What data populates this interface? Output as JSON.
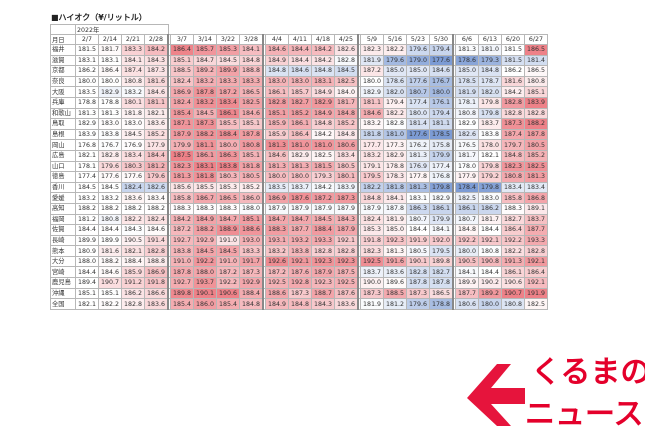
{
  "title": "■ハイオク（¥/リットル）",
  "header": {
    "year_label": "2022年",
    "corner_label": "月日",
    "dates": [
      "2/7",
      "2/14",
      "2/21",
      "2/28",
      "3/7",
      "3/14",
      "3/22",
      "3/28",
      "4/4",
      "4/11",
      "4/18",
      "4/25",
      "5/9",
      "5/16",
      "5/23",
      "5/30",
      "6/6",
      "6/13",
      "6/20",
      "6/27"
    ]
  },
  "rows": [
    {
      "pref": "福井",
      "values": [
        "181.5",
        "181.7",
        "183.3",
        "184.2",
        "186.4",
        "185.7",
        "185.3",
        "184.1",
        "184.6",
        "184.4",
        "184.2",
        "182.6",
        "182.3",
        "182.2",
        "179.6",
        "179.4",
        "181.3",
        "181.0",
        "181.5",
        "186.5"
      ]
    },
    {
      "pref": "滋賀",
      "values": [
        "183.1",
        "183.1",
        "184.1",
        "184.3",
        "185.1",
        "184.7",
        "184.5",
        "184.8",
        "184.9",
        "184.4",
        "184.2",
        "182.8",
        "181.9",
        "179.6",
        "179.0",
        "177.6",
        "178.6",
        "179.3",
        "181.5",
        "181.4"
      ]
    },
    {
      "pref": "京都",
      "values": [
        "186.2",
        "186.4",
        "187.4",
        "187.3",
        "188.5",
        "189.2",
        "189.9",
        "188.8",
        "184.8",
        "184.6",
        "184.8",
        "184.5",
        "187.2",
        "185.0",
        "185.0",
        "184.6",
        "185.0",
        "184.8",
        "186.2",
        "186.5"
      ]
    },
    {
      "pref": "奈良",
      "values": [
        "180.0",
        "180.0",
        "180.8",
        "181.6",
        "182.4",
        "183.2",
        "183.3",
        "183.3",
        "183.0",
        "183.0",
        "183.1",
        "182.5",
        "180.0",
        "178.6",
        "177.6",
        "176.7",
        "178.5",
        "178.7",
        "181.6",
        "180.8"
      ]
    },
    {
      "pref": "大阪",
      "values": [
        "183.5",
        "182.9",
        "183.2",
        "184.6",
        "186.9",
        "187.8",
        "187.2",
        "186.5",
        "186.1",
        "185.7",
        "184.9",
        "184.0",
        "182.9",
        "182.0",
        "180.7",
        "180.0",
        "181.9",
        "182.0",
        "184.2",
        "185.1"
      ]
    },
    {
      "pref": "兵庫",
      "values": [
        "178.8",
        "178.8",
        "180.1",
        "181.1",
        "182.4",
        "183.2",
        "183.4",
        "182.5",
        "182.8",
        "182.7",
        "182.9",
        "181.7",
        "181.1",
        "179.4",
        "177.4",
        "176.1",
        "178.1",
        "179.8",
        "182.8",
        "183.9"
      ]
    },
    {
      "pref": "和歌山",
      "values": [
        "181.3",
        "181.3",
        "181.8",
        "182.1",
        "185.4",
        "184.5",
        "186.1",
        "184.6",
        "185.1",
        "185.2",
        "184.9",
        "184.8",
        "184.6",
        "182.2",
        "180.0",
        "179.4",
        "180.8",
        "179.8",
        "182.8",
        "182.8"
      ]
    },
    {
      "pref": "鳥取",
      "values": [
        "182.9",
        "183.0",
        "183.0",
        "183.6",
        "187.1",
        "187.3",
        "185.5",
        "185.1",
        "185.9",
        "186.1",
        "184.8",
        "185.2",
        "183.2",
        "182.8",
        "181.4",
        "181.1",
        "182.9",
        "183.7",
        "187.3",
        "188.2"
      ]
    },
    {
      "pref": "島根",
      "values": [
        "183.9",
        "183.8",
        "184.5",
        "185.2",
        "187.9",
        "188.2",
        "188.4",
        "187.8",
        "185.9",
        "186.4",
        "184.2",
        "184.8",
        "181.8",
        "181.0",
        "177.6",
        "178.5",
        "182.6",
        "183.8",
        "187.4",
        "187.8"
      ]
    },
    {
      "pref": "岡山",
      "values": [
        "176.8",
        "176.7",
        "176.9",
        "177.9",
        "179.9",
        "181.1",
        "180.0",
        "180.8",
        "181.3",
        "181.0",
        "181.0",
        "180.6",
        "177.7",
        "177.3",
        "176.2",
        "175.8",
        "176.5",
        "178.0",
        "179.7",
        "180.5"
      ]
    },
    {
      "pref": "広島",
      "values": [
        "182.1",
        "182.8",
        "183.4",
        "184.4",
        "187.5",
        "186.1",
        "186.3",
        "185.1",
        "184.6",
        "182.9",
        "182.5",
        "183.4",
        "183.2",
        "182.9",
        "181.3",
        "179.9",
        "181.7",
        "182.1",
        "184.8",
        "185.2"
      ]
    },
    {
      "pref": "山口",
      "values": [
        "178.1",
        "179.6",
        "180.3",
        "181.2",
        "182.3",
        "183.1",
        "183.8",
        "181.8",
        "181.3",
        "181.3",
        "181.5",
        "180.5",
        "179.1",
        "178.8",
        "176.9",
        "177.4",
        "178.0",
        "179.8",
        "182.3",
        "182.5"
      ]
    },
    {
      "pref": "徳島",
      "values": [
        "177.4",
        "177.6",
        "177.6",
        "179.6",
        "181.3",
        "181.8",
        "180.3",
        "180.5",
        "180.0",
        "180.0",
        "179.3",
        "180.1",
        "179.5",
        "178.3",
        "177.8",
        "176.8",
        "177.9",
        "179.2",
        "180.8",
        "181.3"
      ]
    },
    {
      "pref": "香川",
      "values": [
        "184.5",
        "184.5",
        "182.4",
        "182.6",
        "185.6",
        "185.5",
        "185.3",
        "185.2",
        "183.5",
        "183.7",
        "184.2",
        "183.9",
        "182.2",
        "181.8",
        "181.3",
        "179.8",
        "178.4",
        "179.8",
        "183.4",
        "183.4"
      ]
    },
    {
      "pref": "愛媛",
      "values": [
        "183.2",
        "183.2",
        "183.6",
        "183.4",
        "185.8",
        "186.7",
        "186.5",
        "186.0",
        "186.9",
        "187.6",
        "187.2",
        "187.3",
        "184.8",
        "184.1",
        "183.1",
        "182.9",
        "182.5",
        "183.0",
        "185.8",
        "186.8"
      ]
    },
    {
      "pref": "高知",
      "values": [
        "188.2",
        "188.2",
        "188.2",
        "188.2",
        "188.3",
        "188.3",
        "188.3",
        "188.0",
        "187.9",
        "187.9",
        "187.9",
        "187.9",
        "187.9",
        "187.8",
        "186.3",
        "186.1",
        "186.1",
        "186.2",
        "188.3",
        "189.1"
      ]
    },
    {
      "pref": "福岡",
      "values": [
        "181.2",
        "180.8",
        "182.2",
        "182.4",
        "184.2",
        "184.9",
        "184.7",
        "185.1",
        "184.7",
        "184.7",
        "184.5",
        "184.3",
        "182.4",
        "181.9",
        "180.7",
        "179.9",
        "180.7",
        "181.7",
        "182.7",
        "183.7"
      ]
    },
    {
      "pref": "佐賀",
      "values": [
        "184.4",
        "184.4",
        "184.3",
        "184.6",
        "187.2",
        "188.2",
        "188.9",
        "188.6",
        "188.3",
        "187.7",
        "188.4",
        "187.9",
        "185.3",
        "185.0",
        "184.4",
        "184.1",
        "184.8",
        "184.4",
        "186.4",
        "187.7"
      ]
    },
    {
      "pref": "長崎",
      "values": [
        "189.9",
        "189.9",
        "190.5",
        "191.4",
        "192.7",
        "192.9",
        "191.0",
        "193.0",
        "193.1",
        "193.2",
        "193.3",
        "192.1",
        "191.8",
        "192.3",
        "191.9",
        "192.0",
        "192.2",
        "192.1",
        "192.2",
        "193.3"
      ]
    },
    {
      "pref": "熊本",
      "values": [
        "180.9",
        "181.6",
        "182.1",
        "182.8",
        "183.8",
        "184.5",
        "184.5",
        "183.3",
        "183.2",
        "183.8",
        "182.8",
        "182.8",
        "182.3",
        "181.3",
        "180.5",
        "179.5",
        "180.0",
        "180.8",
        "182.2",
        "182.8"
      ]
    },
    {
      "pref": "大分",
      "values": [
        "188.0",
        "188.2",
        "188.4",
        "188.8",
        "191.0",
        "192.2",
        "191.0",
        "191.7",
        "192.6",
        "192.1",
        "192.3",
        "192.3",
        "192.5",
        "191.6",
        "190.1",
        "189.8",
        "190.5",
        "190.8",
        "191.3",
        "192.1"
      ]
    },
    {
      "pref": "宮崎",
      "values": [
        "184.4",
        "184.6",
        "185.9",
        "186.9",
        "187.8",
        "188.0",
        "187.2",
        "187.3",
        "187.2",
        "187.6",
        "187.9",
        "187.5",
        "183.7",
        "183.6",
        "182.8",
        "182.7",
        "184.1",
        "184.4",
        "186.1",
        "186.4"
      ]
    },
    {
      "pref": "鹿児島",
      "values": [
        "189.4",
        "190.7",
        "191.2",
        "191.8",
        "192.7",
        "193.7",
        "192.2",
        "192.9",
        "192.5",
        "192.8",
        "192.3",
        "192.5",
        "190.0",
        "189.6",
        "187.8",
        "187.8",
        "189.9",
        "190.2",
        "190.6",
        "192.1"
      ]
    },
    {
      "pref": "沖縄",
      "values": [
        "185.1",
        "185.1",
        "186.2",
        "186.6",
        "189.8",
        "190.1",
        "190.6",
        "188.4",
        "188.6",
        "187.3",
        "188.7",
        "187.6",
        "187.3",
        "188.5",
        "187.3",
        "186.5",
        "187.7",
        "189.2",
        "190.7",
        "191.9"
      ]
    },
    {
      "pref": "全国",
      "values": [
        "182.1",
        "182.2",
        "182.8",
        "183.6",
        "185.4",
        "186.0",
        "185.4",
        "184.8",
        "184.9",
        "184.8",
        "184.3",
        "183.6",
        "181.9",
        "181.2",
        "179.6",
        "178.8",
        "180.6",
        "180.0",
        "180.8",
        "182.5"
      ]
    }
  ],
  "logo": {
    "line1": "くるまの",
    "line2": "ニュース",
    "color": "#e4002b"
  },
  "colors": {
    "low": "#5b82c9",
    "mid": "#ffffff",
    "high": "#e85760"
  }
}
